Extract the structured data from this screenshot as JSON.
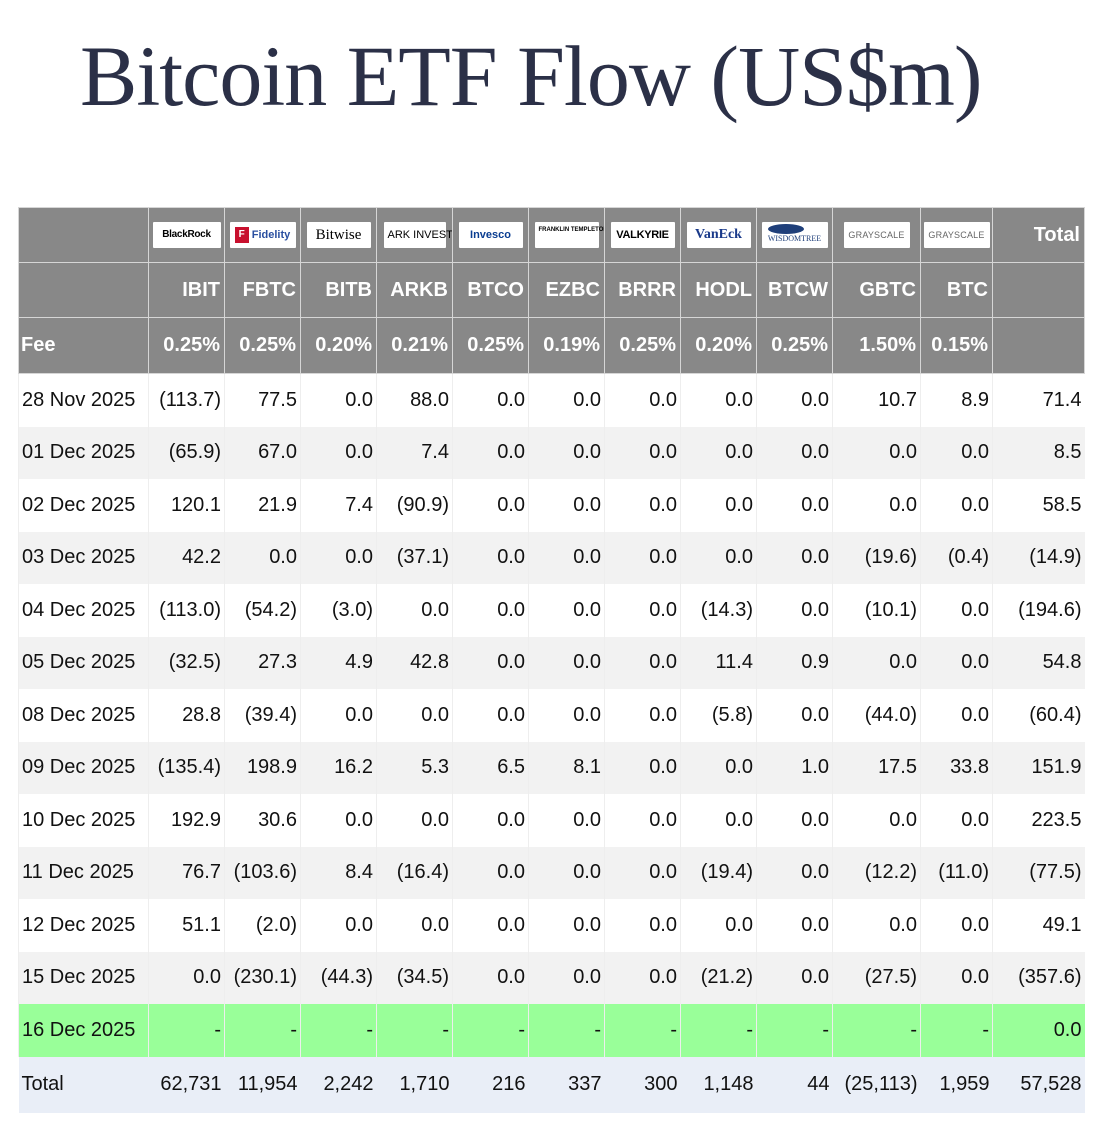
{
  "title": "Bitcoin ETF Flow (US$m)",
  "colors": {
    "header_bg": "#888888",
    "negative": "#e00000",
    "highlight_row": "#99ff99",
    "total_row_bg": "#e9eef7",
    "title": "#2b3047"
  },
  "header": {
    "total_label": "Total",
    "fee_label": "Fee",
    "logos": [
      {
        "issuer": "BlackRock",
        "text": "BlackRock"
      },
      {
        "issuer": "Fidelity",
        "text": "Fidelity",
        "mark": "F"
      },
      {
        "issuer": "Bitwise",
        "text": "Bitwise"
      },
      {
        "issuer": "ARK Invest",
        "text": "ARK INVEST"
      },
      {
        "issuer": "Invesco",
        "text": "Invesco"
      },
      {
        "issuer": "Franklin Templeton",
        "text": "FRANKLIN TEMPLETON"
      },
      {
        "issuer": "Valkyrie",
        "text": "VALKYRIE"
      },
      {
        "issuer": "VanEck",
        "text": "VanEck"
      },
      {
        "issuer": "WisdomTree",
        "text": "WISDOMTREE"
      },
      {
        "issuer": "Grayscale",
        "text": "GRAYSCALE"
      },
      {
        "issuer": "Grayscale",
        "text": "GRAYSCALE"
      }
    ],
    "tickers": [
      "IBIT",
      "FBTC",
      "BITB",
      "ARKB",
      "BTCO",
      "EZBC",
      "BRRR",
      "HODL",
      "BTCW",
      "GBTC",
      "BTC"
    ],
    "fees": [
      "0.25%",
      "0.25%",
      "0.20%",
      "0.21%",
      "0.25%",
      "0.19%",
      "0.25%",
      "0.20%",
      "0.25%",
      "1.50%",
      "0.15%"
    ]
  },
  "rows": [
    {
      "date": "28 Nov 2025",
      "values": [
        "(113.7)",
        "77.5",
        "0.0",
        "88.0",
        "0.0",
        "0.0",
        "0.0",
        "0.0",
        "0.0",
        "10.7",
        "8.9"
      ],
      "total": "71.4"
    },
    {
      "date": "01 Dec 2025",
      "values": [
        "(65.9)",
        "67.0",
        "0.0",
        "7.4",
        "0.0",
        "0.0",
        "0.0",
        "0.0",
        "0.0",
        "0.0",
        "0.0"
      ],
      "total": "8.5"
    },
    {
      "date": "02 Dec 2025",
      "values": [
        "120.1",
        "21.9",
        "7.4",
        "(90.9)",
        "0.0",
        "0.0",
        "0.0",
        "0.0",
        "0.0",
        "0.0",
        "0.0"
      ],
      "total": "58.5"
    },
    {
      "date": "03 Dec 2025",
      "values": [
        "42.2",
        "0.0",
        "0.0",
        "(37.1)",
        "0.0",
        "0.0",
        "0.0",
        "0.0",
        "0.0",
        "(19.6)",
        "(0.4)"
      ],
      "total": "(14.9)"
    },
    {
      "date": "04 Dec 2025",
      "values": [
        "(113.0)",
        "(54.2)",
        "(3.0)",
        "0.0",
        "0.0",
        "0.0",
        "0.0",
        "(14.3)",
        "0.0",
        "(10.1)",
        "0.0"
      ],
      "total": "(194.6)"
    },
    {
      "date": "05 Dec 2025",
      "values": [
        "(32.5)",
        "27.3",
        "4.9",
        "42.8",
        "0.0",
        "0.0",
        "0.0",
        "11.4",
        "0.9",
        "0.0",
        "0.0"
      ],
      "total": "54.8"
    },
    {
      "date": "08 Dec 2025",
      "values": [
        "28.8",
        "(39.4)",
        "0.0",
        "0.0",
        "0.0",
        "0.0",
        "0.0",
        "(5.8)",
        "0.0",
        "(44.0)",
        "0.0"
      ],
      "total": "(60.4)"
    },
    {
      "date": "09 Dec 2025",
      "values": [
        "(135.4)",
        "198.9",
        "16.2",
        "5.3",
        "6.5",
        "8.1",
        "0.0",
        "0.0",
        "1.0",
        "17.5",
        "33.8"
      ],
      "total": "151.9"
    },
    {
      "date": "10 Dec 2025",
      "values": [
        "192.9",
        "30.6",
        "0.0",
        "0.0",
        "0.0",
        "0.0",
        "0.0",
        "0.0",
        "0.0",
        "0.0",
        "0.0"
      ],
      "total": "223.5"
    },
    {
      "date": "11 Dec 2025",
      "values": [
        "76.7",
        "(103.6)",
        "8.4",
        "(16.4)",
        "0.0",
        "0.0",
        "0.0",
        "(19.4)",
        "0.0",
        "(12.2)",
        "(11.0)"
      ],
      "total": "(77.5)"
    },
    {
      "date": "12 Dec 2025",
      "values": [
        "51.1",
        "(2.0)",
        "0.0",
        "0.0",
        "0.0",
        "0.0",
        "0.0",
        "0.0",
        "0.0",
        "0.0",
        "0.0"
      ],
      "total": "49.1"
    },
    {
      "date": "15 Dec 2025",
      "values": [
        "0.0",
        "(230.1)",
        "(44.3)",
        "(34.5)",
        "0.0",
        "0.0",
        "0.0",
        "(21.2)",
        "0.0",
        "(27.5)",
        "0.0"
      ],
      "total": "(357.6)"
    },
    {
      "date": "16 Dec 2025",
      "values": [
        "-",
        "-",
        "-",
        "-",
        "-",
        "-",
        "-",
        "-",
        "-",
        "-",
        "-"
      ],
      "total": "0.0",
      "highlight": true
    }
  ],
  "totals": {
    "label": "Total",
    "values": [
      "62,731",
      "11,954",
      "2,242",
      "1,710",
      "216",
      "337",
      "300",
      "1,148",
      "44",
      "(25,113)",
      "1,959"
    ],
    "total": "57,528"
  }
}
